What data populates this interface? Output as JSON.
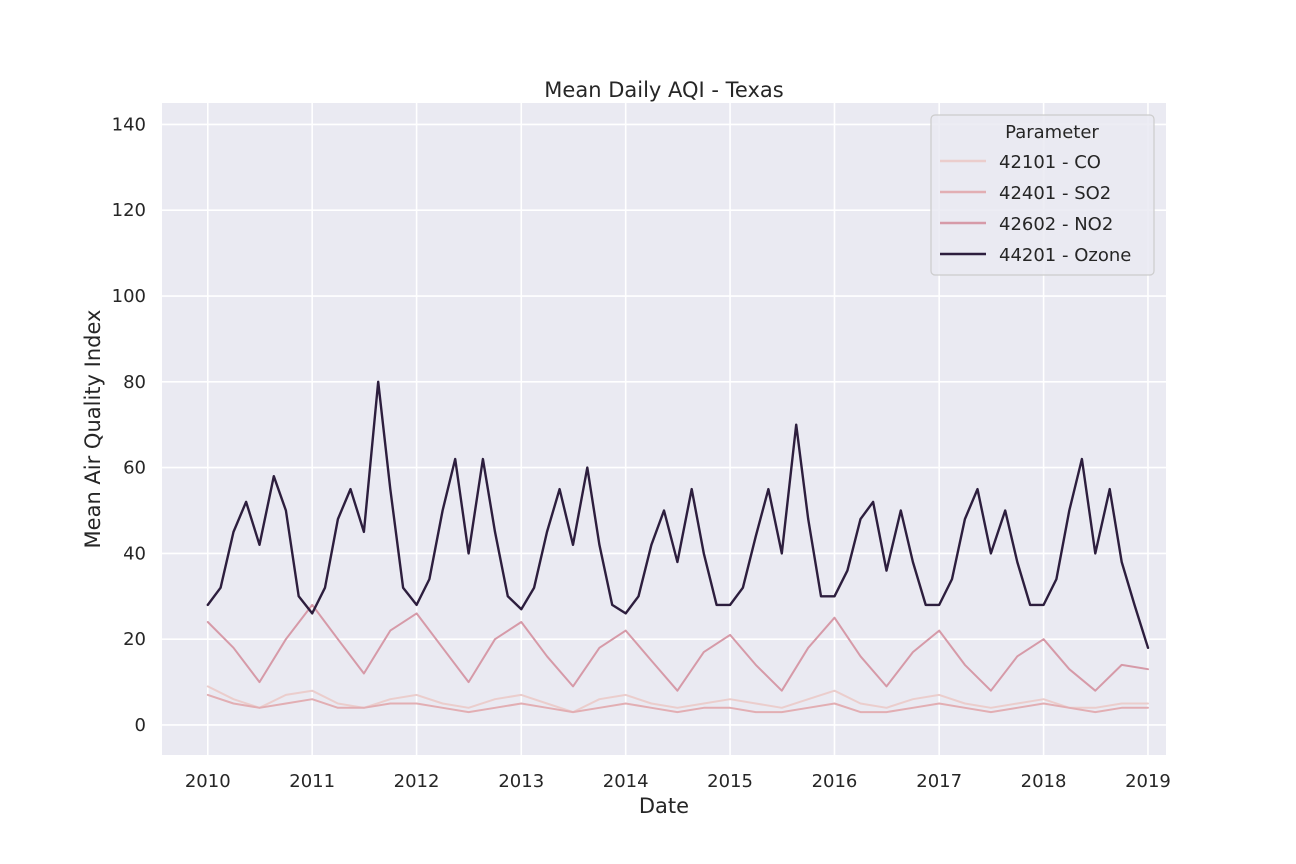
{
  "chart_data": {
    "type": "line",
    "title": "Mean Daily AQI - Texas",
    "xlabel": "Date",
    "ylabel": "Mean Air Quality Index",
    "x_range": [
      "2009-07-25",
      "2019-03-05"
    ],
    "ylim": [
      -7,
      145
    ],
    "x_ticks": [
      "2010",
      "2011",
      "2012",
      "2013",
      "2014",
      "2015",
      "2016",
      "2017",
      "2018",
      "2019"
    ],
    "y_ticks": [
      0,
      20,
      40,
      60,
      80,
      100,
      120,
      140
    ],
    "grid": true,
    "legend": {
      "title": "Parameter",
      "placement": "top-right"
    },
    "series": [
      {
        "name": "42101 - CO",
        "color": "#ebcdcc",
        "x": [
          "2010-01-01",
          "2010-04-01",
          "2010-07-01",
          "2010-10-01",
          "2011-01-01",
          "2011-04-01",
          "2011-07-01",
          "2011-10-01",
          "2012-01-01",
          "2012-04-01",
          "2012-07-01",
          "2012-10-01",
          "2013-01-01",
          "2013-04-01",
          "2013-07-01",
          "2013-10-01",
          "2014-01-01",
          "2014-04-01",
          "2014-07-01",
          "2014-10-01",
          "2015-01-01",
          "2015-04-01",
          "2015-07-01",
          "2015-10-01",
          "2016-01-01",
          "2016-04-01",
          "2016-07-01",
          "2016-10-01",
          "2017-01-01",
          "2017-04-01",
          "2017-07-01",
          "2017-10-01",
          "2018-01-01",
          "2018-04-01",
          "2018-07-01",
          "2018-10-01",
          "2019-01-01"
        ],
        "y": [
          9,
          6,
          4,
          7,
          8,
          5,
          4,
          6,
          7,
          5,
          4,
          6,
          7,
          5,
          3,
          6,
          7,
          5,
          4,
          5,
          6,
          5,
          4,
          6,
          8,
          5,
          4,
          6,
          7,
          5,
          4,
          5,
          6,
          4,
          4,
          5,
          5
        ]
      },
      {
        "name": "42401 - SO2",
        "color": "#e2aeb3",
        "x": [
          "2010-01-01",
          "2010-04-01",
          "2010-07-01",
          "2010-10-01",
          "2011-01-01",
          "2011-04-01",
          "2011-07-01",
          "2011-10-01",
          "2012-01-01",
          "2012-04-01",
          "2012-07-01",
          "2012-10-01",
          "2013-01-01",
          "2013-04-01",
          "2013-07-01",
          "2013-10-01",
          "2014-01-01",
          "2014-04-01",
          "2014-07-01",
          "2014-10-01",
          "2015-01-01",
          "2015-04-01",
          "2015-07-01",
          "2015-10-01",
          "2016-01-01",
          "2016-04-01",
          "2016-07-01",
          "2016-10-01",
          "2017-01-01",
          "2017-04-01",
          "2017-07-01",
          "2017-10-01",
          "2018-01-01",
          "2018-04-01",
          "2018-07-01",
          "2018-10-01",
          "2019-01-01"
        ],
        "y": [
          7,
          5,
          4,
          5,
          6,
          4,
          4,
          5,
          5,
          4,
          3,
          4,
          5,
          4,
          3,
          4,
          5,
          4,
          3,
          4,
          4,
          3,
          3,
          4,
          5,
          3,
          3,
          4,
          5,
          4,
          3,
          4,
          5,
          4,
          3,
          4,
          4
        ]
      },
      {
        "name": "42602 - NO2",
        "color": "#d69aa8",
        "x": [
          "2010-01-01",
          "2010-04-01",
          "2010-07-01",
          "2010-10-01",
          "2011-01-01",
          "2011-04-01",
          "2011-07-01",
          "2011-10-01",
          "2012-01-01",
          "2012-04-01",
          "2012-07-01",
          "2012-10-01",
          "2013-01-01",
          "2013-04-01",
          "2013-07-01",
          "2013-10-01",
          "2014-01-01",
          "2014-04-01",
          "2014-07-01",
          "2014-10-01",
          "2015-01-01",
          "2015-04-01",
          "2015-07-01",
          "2015-10-01",
          "2016-01-01",
          "2016-04-01",
          "2016-07-01",
          "2016-10-01",
          "2017-01-01",
          "2017-04-01",
          "2017-07-01",
          "2017-10-01",
          "2018-01-01",
          "2018-04-01",
          "2018-07-01",
          "2018-10-01",
          "2019-01-01"
        ],
        "y": [
          24,
          18,
          10,
          20,
          28,
          20,
          12,
          22,
          26,
          18,
          10,
          20,
          24,
          16,
          9,
          18,
          22,
          15,
          8,
          17,
          21,
          14,
          8,
          18,
          25,
          16,
          9,
          17,
          22,
          14,
          8,
          16,
          20,
          13,
          8,
          14,
          13
        ]
      },
      {
        "name": "44201 - Ozone",
        "color": "#2d1e3e",
        "x": [
          "2010-01-01",
          "2010-02-15",
          "2010-04-01",
          "2010-05-15",
          "2010-07-01",
          "2010-08-20",
          "2010-10-01",
          "2010-11-15",
          "2011-01-01",
          "2011-02-15",
          "2011-04-01",
          "2011-05-15",
          "2011-07-01",
          "2011-08-20",
          "2011-10-01",
          "2011-11-15",
          "2012-01-01",
          "2012-02-15",
          "2012-04-01",
          "2012-05-15",
          "2012-07-01",
          "2012-08-20",
          "2012-10-01",
          "2012-11-15",
          "2013-01-01",
          "2013-02-15",
          "2013-04-01",
          "2013-05-15",
          "2013-07-01",
          "2013-08-20",
          "2013-10-01",
          "2013-11-15",
          "2014-01-01",
          "2014-02-15",
          "2014-04-01",
          "2014-05-15",
          "2014-07-01",
          "2014-08-20",
          "2014-10-01",
          "2014-11-15",
          "2015-01-01",
          "2015-02-15",
          "2015-04-01",
          "2015-05-15",
          "2015-07-01",
          "2015-08-20",
          "2015-10-01",
          "2015-11-15",
          "2016-01-01",
          "2016-02-15",
          "2016-04-01",
          "2016-05-15",
          "2016-07-01",
          "2016-08-20",
          "2016-10-01",
          "2016-11-15",
          "2017-01-01",
          "2017-02-15",
          "2017-04-01",
          "2017-05-15",
          "2017-07-01",
          "2017-08-20",
          "2017-10-01",
          "2017-11-15",
          "2018-01-01",
          "2018-02-15",
          "2018-04-01",
          "2018-05-15",
          "2018-07-01",
          "2018-08-20",
          "2018-10-01",
          "2018-11-15",
          "2019-01-01"
        ],
        "y": [
          28,
          32,
          45,
          52,
          42,
          58,
          50,
          30,
          26,
          32,
          48,
          55,
          45,
          80,
          55,
          32,
          28,
          34,
          50,
          62,
          40,
          62,
          45,
          30,
          27,
          32,
          45,
          55,
          42,
          60,
          42,
          28,
          26,
          30,
          42,
          50,
          38,
          55,
          40,
          28,
          28,
          32,
          44,
          55,
          40,
          70,
          48,
          30,
          30,
          36,
          48,
          52,
          36,
          50,
          38,
          28,
          28,
          34,
          48,
          55,
          40,
          50,
          38,
          28,
          28,
          34,
          50,
          62,
          40,
          55,
          38,
          28,
          18
        ]
      }
    ]
  }
}
